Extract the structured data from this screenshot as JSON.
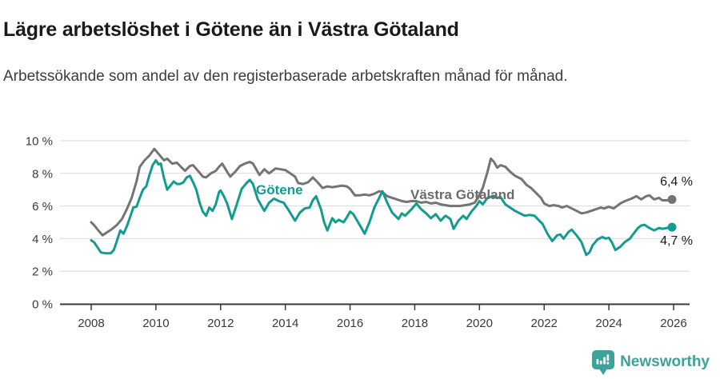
{
  "header": {
    "title": "Lägre arbetslöshet i Götene än i Västra Götaland",
    "subtitle": "Arbetssökande som andel av den registerbaserade arbetskraften månad för månad."
  },
  "colors": {
    "gotene": "#149b8f",
    "vastra_gotaland": "#747474",
    "grid": "#d9d9d9",
    "axis": "#3a3a3a",
    "tick_text": "#3a3a3a",
    "end_label_text": "#191919",
    "brand_teal": "#3ca29a"
  },
  "footer": {
    "brand": "Newsworthy",
    "brand_icon": "bar-chart-speech-bubble-icon"
  },
  "chart_data": {
    "type": "line",
    "title": "Lägre arbetslöshet i Götene än i Västra Götaland",
    "subtitle": "Arbetssökande som andel av den registerbaserade arbetskraften månad för månad.",
    "grid": "horizontal",
    "legend_position": "inline-labels-on-lines",
    "x_axis": {
      "ticks": [
        2008,
        2010,
        2012,
        2014,
        2016,
        2018,
        2020,
        2022,
        2024,
        2026
      ],
      "range": [
        2007.9,
        2026.5
      ]
    },
    "y_axis": {
      "unit": "%",
      "tick_values": [
        0,
        2,
        4,
        6,
        8,
        10
      ],
      "ticks": [
        "0 %",
        "2 %",
        "4 %",
        "6 %",
        "8 %",
        "10 %"
      ],
      "range": [
        0,
        10
      ]
    },
    "series": [
      {
        "name": "Västra Götaland",
        "color": "#747474",
        "end_label": "6,4 %",
        "end_value": 6.4,
        "points": [
          [
            2008.0,
            5.0
          ],
          [
            2008.1,
            4.8
          ],
          [
            2008.2,
            4.55
          ],
          [
            2008.35,
            4.2
          ],
          [
            2008.5,
            4.4
          ],
          [
            2008.65,
            4.6
          ],
          [
            2008.8,
            4.85
          ],
          [
            2008.95,
            5.2
          ],
          [
            2009.1,
            5.8
          ],
          [
            2009.25,
            6.5
          ],
          [
            2009.4,
            7.5
          ],
          [
            2009.5,
            8.4
          ],
          [
            2009.65,
            8.8
          ],
          [
            2009.8,
            9.1
          ],
          [
            2009.95,
            9.5
          ],
          [
            2010.1,
            9.15
          ],
          [
            2010.25,
            8.8
          ],
          [
            2010.35,
            8.9
          ],
          [
            2010.5,
            8.6
          ],
          [
            2010.65,
            8.65
          ],
          [
            2010.8,
            8.35
          ],
          [
            2010.9,
            8.15
          ],
          [
            2011.05,
            8.45
          ],
          [
            2011.15,
            8.5
          ],
          [
            2011.3,
            8.15
          ],
          [
            2011.45,
            7.8
          ],
          [
            2011.55,
            7.75
          ],
          [
            2011.7,
            8.0
          ],
          [
            2011.85,
            8.15
          ],
          [
            2011.95,
            8.4
          ],
          [
            2012.05,
            8.6
          ],
          [
            2012.2,
            8.1
          ],
          [
            2012.3,
            7.8
          ],
          [
            2012.45,
            8.1
          ],
          [
            2012.6,
            8.45
          ],
          [
            2012.75,
            8.6
          ],
          [
            2012.9,
            8.7
          ],
          [
            2013.0,
            8.6
          ],
          [
            2013.2,
            7.9
          ],
          [
            2013.35,
            8.25
          ],
          [
            2013.5,
            8.0
          ],
          [
            2013.7,
            8.3
          ],
          [
            2013.85,
            8.25
          ],
          [
            2014.0,
            8.2
          ],
          [
            2014.15,
            8.0
          ],
          [
            2014.3,
            7.8
          ],
          [
            2014.4,
            7.4
          ],
          [
            2014.55,
            7.35
          ],
          [
            2014.7,
            7.45
          ],
          [
            2014.85,
            7.75
          ],
          [
            2015.0,
            7.45
          ],
          [
            2015.15,
            7.1
          ],
          [
            2015.3,
            7.2
          ],
          [
            2015.45,
            7.15
          ],
          [
            2015.6,
            7.2
          ],
          [
            2015.75,
            7.25
          ],
          [
            2015.9,
            7.2
          ],
          [
            2016.0,
            7.05
          ],
          [
            2016.15,
            6.65
          ],
          [
            2016.3,
            6.65
          ],
          [
            2016.45,
            6.7
          ],
          [
            2016.6,
            6.65
          ],
          [
            2016.75,
            6.75
          ],
          [
            2016.9,
            6.9
          ],
          [
            2017.0,
            6.85
          ],
          [
            2017.15,
            6.6
          ],
          [
            2017.3,
            6.5
          ],
          [
            2017.45,
            6.4
          ],
          [
            2017.6,
            6.3
          ],
          [
            2017.75,
            6.25
          ],
          [
            2017.9,
            6.3
          ],
          [
            2018.05,
            6.3
          ],
          [
            2018.2,
            6.2
          ],
          [
            2018.35,
            6.25
          ],
          [
            2018.5,
            6.15
          ],
          [
            2018.65,
            6.2
          ],
          [
            2018.8,
            6.1
          ],
          [
            2018.95,
            6.05
          ],
          [
            2019.1,
            6.0
          ],
          [
            2019.25,
            6.0
          ],
          [
            2019.4,
            6.0
          ],
          [
            2019.55,
            6.05
          ],
          [
            2019.7,
            6.1
          ],
          [
            2019.85,
            6.2
          ],
          [
            2019.95,
            6.5
          ],
          [
            2020.1,
            7.1
          ],
          [
            2020.25,
            8.1
          ],
          [
            2020.35,
            8.9
          ],
          [
            2020.45,
            8.7
          ],
          [
            2020.55,
            8.35
          ],
          [
            2020.65,
            8.5
          ],
          [
            2020.8,
            8.4
          ],
          [
            2020.95,
            8.1
          ],
          [
            2021.1,
            7.85
          ],
          [
            2021.3,
            7.65
          ],
          [
            2021.45,
            7.3
          ],
          [
            2021.6,
            7.1
          ],
          [
            2021.75,
            6.8
          ],
          [
            2021.9,
            6.5
          ],
          [
            2022.0,
            6.15
          ],
          [
            2022.15,
            6.0
          ],
          [
            2022.3,
            6.05
          ],
          [
            2022.45,
            6.0
          ],
          [
            2022.55,
            5.9
          ],
          [
            2022.7,
            6.0
          ],
          [
            2022.85,
            5.85
          ],
          [
            2023.0,
            5.7
          ],
          [
            2023.15,
            5.55
          ],
          [
            2023.3,
            5.6
          ],
          [
            2023.45,
            5.7
          ],
          [
            2023.6,
            5.8
          ],
          [
            2023.75,
            5.9
          ],
          [
            2023.85,
            5.85
          ],
          [
            2024.0,
            5.95
          ],
          [
            2024.15,
            5.85
          ],
          [
            2024.35,
            6.15
          ],
          [
            2024.5,
            6.3
          ],
          [
            2024.7,
            6.45
          ],
          [
            2024.85,
            6.6
          ],
          [
            2025.0,
            6.4
          ],
          [
            2025.15,
            6.6
          ],
          [
            2025.25,
            6.65
          ],
          [
            2025.4,
            6.4
          ],
          [
            2025.55,
            6.5
          ],
          [
            2025.65,
            6.35
          ],
          [
            2025.8,
            6.35
          ],
          [
            2025.95,
            6.4
          ]
        ]
      },
      {
        "name": "Götene",
        "color": "#149b8f",
        "end_label": "4,7 %",
        "end_value": 4.7,
        "points": [
          [
            2008.0,
            3.9
          ],
          [
            2008.1,
            3.75
          ],
          [
            2008.2,
            3.45
          ],
          [
            2008.3,
            3.15
          ],
          [
            2008.45,
            3.1
          ],
          [
            2008.6,
            3.1
          ],
          [
            2008.7,
            3.3
          ],
          [
            2008.8,
            3.9
          ],
          [
            2008.9,
            4.5
          ],
          [
            2009.0,
            4.3
          ],
          [
            2009.1,
            4.75
          ],
          [
            2009.2,
            5.3
          ],
          [
            2009.3,
            5.9
          ],
          [
            2009.4,
            5.95
          ],
          [
            2009.5,
            6.5
          ],
          [
            2009.6,
            7.0
          ],
          [
            2009.7,
            7.2
          ],
          [
            2009.8,
            7.9
          ],
          [
            2009.9,
            8.5
          ],
          [
            2010.0,
            8.8
          ],
          [
            2010.08,
            8.55
          ],
          [
            2010.15,
            8.6
          ],
          [
            2010.25,
            7.7
          ],
          [
            2010.35,
            7.0
          ],
          [
            2010.45,
            7.25
          ],
          [
            2010.55,
            7.5
          ],
          [
            2010.65,
            7.35
          ],
          [
            2010.75,
            7.35
          ],
          [
            2010.85,
            7.45
          ],
          [
            2010.95,
            7.75
          ],
          [
            2011.05,
            7.85
          ],
          [
            2011.15,
            7.45
          ],
          [
            2011.25,
            7.0
          ],
          [
            2011.35,
            6.2
          ],
          [
            2011.45,
            5.65
          ],
          [
            2011.55,
            5.4
          ],
          [
            2011.65,
            5.9
          ],
          [
            2011.75,
            5.7
          ],
          [
            2011.85,
            6.1
          ],
          [
            2011.95,
            6.85
          ],
          [
            2012.0,
            6.95
          ],
          [
            2012.1,
            6.6
          ],
          [
            2012.2,
            6.15
          ],
          [
            2012.35,
            5.2
          ],
          [
            2012.5,
            6.1
          ],
          [
            2012.65,
            7.05
          ],
          [
            2012.8,
            7.4
          ],
          [
            2012.9,
            7.6
          ],
          [
            2013.0,
            7.35
          ],
          [
            2013.15,
            6.4
          ],
          [
            2013.35,
            5.7
          ],
          [
            2013.5,
            6.2
          ],
          [
            2013.65,
            6.45
          ],
          [
            2013.8,
            6.3
          ],
          [
            2013.95,
            6.2
          ],
          [
            2014.1,
            5.75
          ],
          [
            2014.3,
            5.1
          ],
          [
            2014.45,
            5.6
          ],
          [
            2014.6,
            5.85
          ],
          [
            2014.75,
            5.9
          ],
          [
            2014.85,
            6.35
          ],
          [
            2014.95,
            6.6
          ],
          [
            2015.1,
            5.8
          ],
          [
            2015.2,
            5.0
          ],
          [
            2015.3,
            4.5
          ],
          [
            2015.45,
            5.25
          ],
          [
            2015.55,
            5.0
          ],
          [
            2015.65,
            5.15
          ],
          [
            2015.8,
            5.0
          ],
          [
            2015.9,
            5.3
          ],
          [
            2016.0,
            5.65
          ],
          [
            2016.1,
            5.5
          ],
          [
            2016.25,
            5.0
          ],
          [
            2016.45,
            4.3
          ],
          [
            2016.6,
            5.0
          ],
          [
            2016.75,
            5.9
          ],
          [
            2016.9,
            6.5
          ],
          [
            2017.0,
            6.9
          ],
          [
            2017.15,
            6.2
          ],
          [
            2017.3,
            5.6
          ],
          [
            2017.5,
            5.2
          ],
          [
            2017.6,
            5.55
          ],
          [
            2017.7,
            5.4
          ],
          [
            2017.9,
            5.8
          ],
          [
            2018.05,
            6.15
          ],
          [
            2018.2,
            5.8
          ],
          [
            2018.35,
            5.55
          ],
          [
            2018.5,
            5.25
          ],
          [
            2018.65,
            5.5
          ],
          [
            2018.8,
            5.1
          ],
          [
            2018.95,
            5.4
          ],
          [
            2019.1,
            5.2
          ],
          [
            2019.2,
            4.6
          ],
          [
            2019.35,
            5.1
          ],
          [
            2019.5,
            5.4
          ],
          [
            2019.6,
            5.2
          ],
          [
            2019.75,
            5.65
          ],
          [
            2019.9,
            6.0
          ],
          [
            2020.0,
            6.3
          ],
          [
            2020.1,
            6.1
          ],
          [
            2020.25,
            6.5
          ],
          [
            2020.4,
            6.6
          ],
          [
            2020.55,
            6.5
          ],
          [
            2020.65,
            6.55
          ],
          [
            2020.8,
            6.1
          ],
          [
            2020.95,
            5.9
          ],
          [
            2021.1,
            5.7
          ],
          [
            2021.25,
            5.55
          ],
          [
            2021.4,
            5.4
          ],
          [
            2021.55,
            5.45
          ],
          [
            2021.7,
            5.4
          ],
          [
            2021.85,
            5.1
          ],
          [
            2021.95,
            4.9
          ],
          [
            2022.1,
            4.3
          ],
          [
            2022.25,
            3.85
          ],
          [
            2022.4,
            4.2
          ],
          [
            2022.5,
            4.25
          ],
          [
            2022.6,
            4.0
          ],
          [
            2022.75,
            4.4
          ],
          [
            2022.85,
            4.55
          ],
          [
            2023.0,
            4.2
          ],
          [
            2023.15,
            3.8
          ],
          [
            2023.3,
            3.0
          ],
          [
            2023.4,
            3.15
          ],
          [
            2023.5,
            3.6
          ],
          [
            2023.65,
            3.95
          ],
          [
            2023.8,
            4.1
          ],
          [
            2023.9,
            4.0
          ],
          [
            2024.0,
            4.05
          ],
          [
            2024.1,
            3.75
          ],
          [
            2024.2,
            3.3
          ],
          [
            2024.35,
            3.5
          ],
          [
            2024.5,
            3.8
          ],
          [
            2024.65,
            4.0
          ],
          [
            2024.8,
            4.4
          ],
          [
            2024.9,
            4.65
          ],
          [
            2025.0,
            4.8
          ],
          [
            2025.1,
            4.85
          ],
          [
            2025.25,
            4.65
          ],
          [
            2025.4,
            4.5
          ],
          [
            2025.55,
            4.65
          ],
          [
            2025.65,
            4.6
          ],
          [
            2025.8,
            4.65
          ],
          [
            2025.95,
            4.7
          ]
        ]
      }
    ]
  }
}
